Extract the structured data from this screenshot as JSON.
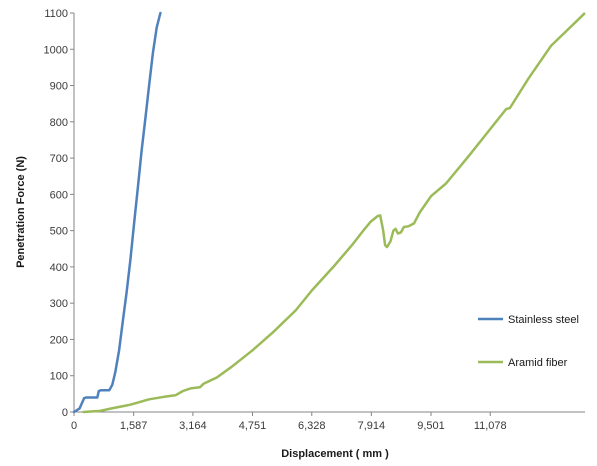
{
  "chart_data": {
    "type": "line",
    "xlabel": "Displacement ( mm )",
    "ylabel": "Penetration Force (N)",
    "xlim": [
      0,
      13600
    ],
    "ylim": [
      0,
      1100
    ],
    "x_ticks": [
      0,
      1587,
      3164,
      4751,
      6328,
      7914,
      9501,
      11078
    ],
    "x_tick_labels": [
      "0",
      "1,587",
      "3,164",
      "4,751",
      "6,328",
      "7,914",
      "9,501",
      "11,078"
    ],
    "y_ticks": [
      0,
      100,
      200,
      300,
      400,
      500,
      600,
      700,
      800,
      900,
      1000,
      1100
    ],
    "y_tick_labels": [
      "0",
      "100",
      "200",
      "300",
      "400",
      "500",
      "600",
      "700",
      "800",
      "900",
      "1000",
      "1100"
    ],
    "grid": false,
    "legend_position": "right",
    "series": [
      {
        "name": "Stainless steel",
        "color": "#4F81BD",
        "points": [
          [
            0,
            0
          ],
          [
            150,
            10
          ],
          [
            270,
            38
          ],
          [
            320,
            40
          ],
          [
            620,
            40
          ],
          [
            660,
            58
          ],
          [
            720,
            60
          ],
          [
            940,
            60
          ],
          [
            1020,
            75
          ],
          [
            1100,
            110
          ],
          [
            1200,
            170
          ],
          [
            1300,
            250
          ],
          [
            1400,
            330
          ],
          [
            1500,
            420
          ],
          [
            1600,
            520
          ],
          [
            1700,
            620
          ],
          [
            1800,
            720
          ],
          [
            1900,
            810
          ],
          [
            2000,
            900
          ],
          [
            2100,
            990
          ],
          [
            2200,
            1060
          ],
          [
            2300,
            1100
          ]
        ]
      },
      {
        "name": "Aramid fiber",
        "color": "#9BBB59",
        "points": [
          [
            250,
            0
          ],
          [
            700,
            3
          ],
          [
            1000,
            10
          ],
          [
            1500,
            20
          ],
          [
            2000,
            35
          ],
          [
            2400,
            42
          ],
          [
            2700,
            46
          ],
          [
            2900,
            58
          ],
          [
            3100,
            65
          ],
          [
            3350,
            68
          ],
          [
            3450,
            78
          ],
          [
            3800,
            95
          ],
          [
            4200,
            125
          ],
          [
            4751,
            170
          ],
          [
            5300,
            220
          ],
          [
            5900,
            280
          ],
          [
            6328,
            335
          ],
          [
            6900,
            400
          ],
          [
            7400,
            460
          ],
          [
            7700,
            500
          ],
          [
            7900,
            525
          ],
          [
            8080,
            540
          ],
          [
            8150,
            542
          ],
          [
            8230,
            500
          ],
          [
            8280,
            460
          ],
          [
            8330,
            455
          ],
          [
            8420,
            470
          ],
          [
            8500,
            500
          ],
          [
            8560,
            505
          ],
          [
            8620,
            492
          ],
          [
            8700,
            495
          ],
          [
            8780,
            510
          ],
          [
            8900,
            512
          ],
          [
            9050,
            520
          ],
          [
            9200,
            550
          ],
          [
            9501,
            595
          ],
          [
            9900,
            630
          ],
          [
            10500,
            705
          ],
          [
            11078,
            780
          ],
          [
            11500,
            835
          ],
          [
            11600,
            838
          ],
          [
            12100,
            920
          ],
          [
            12700,
            1010
          ],
          [
            13200,
            1060
          ],
          [
            13400,
            1080
          ],
          [
            13580,
            1098
          ]
        ]
      }
    ]
  }
}
